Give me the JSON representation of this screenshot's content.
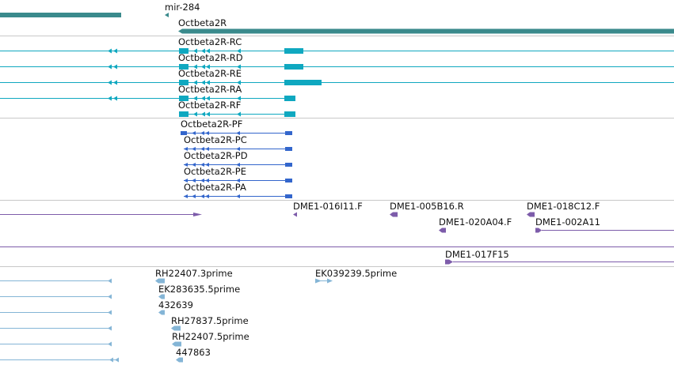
{
  "colors": {
    "gene": "#3a8a8c",
    "rna": "#0fa8c0",
    "protein": "#3366cc",
    "clone": "#7d5caa",
    "est": "#84b5d6",
    "separator": "#c8c8c8"
  },
  "tracks": {
    "genes": {
      "items": [
        {
          "label": "",
          "color_key": "gene"
        },
        {
          "label": "mir-284",
          "color_key": "gene"
        },
        {
          "label": "Octbeta2R",
          "color_key": "gene"
        }
      ]
    },
    "transcripts": {
      "items": [
        {
          "label": "Octbeta2R-RC"
        },
        {
          "label": "Octbeta2R-RD"
        },
        {
          "label": "Octbeta2R-RE"
        },
        {
          "label": "Octbeta2R-RA"
        },
        {
          "label": "Octbeta2R-RF"
        }
      ]
    },
    "proteins": {
      "items": [
        {
          "label": "Octbeta2R-PF"
        },
        {
          "label": "Octbeta2R-PC"
        },
        {
          "label": "Octbeta2R-PD"
        },
        {
          "label": "Octbeta2R-PE"
        },
        {
          "label": "Octbeta2R-PA"
        }
      ]
    },
    "clones": {
      "items": [
        {
          "label": ""
        },
        {
          "label": "DME1-016I11.F"
        },
        {
          "label": "DME1-005B16.R"
        },
        {
          "label": "DME1-018C12.F"
        },
        {
          "label": "DME1-020A04.F"
        },
        {
          "label": "DME1-002A11"
        },
        {
          "label": "DME1-017F15"
        }
      ]
    },
    "ests": {
      "items": [
        {
          "label": "RH22407.3prime"
        },
        {
          "label": "EK039239.5prime"
        },
        {
          "label": "EK283635.5prime"
        },
        {
          "label": "432639"
        },
        {
          "label": "RH27837.5prime"
        },
        {
          "label": "RH22407.5prime"
        },
        {
          "label": "447863"
        }
      ]
    }
  }
}
